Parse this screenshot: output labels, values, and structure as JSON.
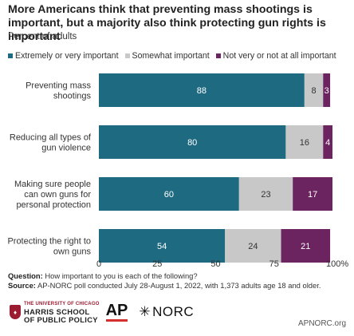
{
  "title": "More Americans think that preventing mass shootings is important, but a majority also think protecting gun rights is important",
  "subtitle": "Percent of adults",
  "footer": {
    "question_label": "Question:",
    "question_text": "How important to you is each of the following?",
    "source_label": "Source:",
    "source_text": "AP-NORC poll conducted July 28-August 1, 2022, with 1,373 adults age 18 and older."
  },
  "logos": {
    "uchicago_small": "THE UNIVERSITY OF CHICAGO",
    "uchicago_line1": "HARRIS SCHOOL",
    "uchicago_line2": "OF PUBLIC POLICY",
    "ap": "AP",
    "norc_star": "✳",
    "norc": "NORC"
  },
  "site": "APNORC.org",
  "colors": {
    "extremely": "#1e6a80",
    "somewhat": "#c8c8c8",
    "not": "#6c2460"
  },
  "chart_data": {
    "type": "bar",
    "orientation": "horizontal",
    "stacked": true,
    "categories": [
      [
        "Preventing mass",
        "shootings"
      ],
      [
        "Reducing all types of",
        "gun violence"
      ],
      [
        "Making sure people",
        "can own guns for",
        "personal protection"
      ],
      [
        "Protecting the right to",
        "own guns"
      ]
    ],
    "series": [
      {
        "name": "Extremely or very important",
        "color_key": "extremely",
        "values": [
          88,
          80,
          60,
          54
        ]
      },
      {
        "name": "Somewhat important",
        "color_key": "somewhat",
        "values": [
          8,
          16,
          23,
          24
        ]
      },
      {
        "name": "Not very or not at all important",
        "color_key": "not",
        "values": [
          3,
          4,
          17,
          21
        ]
      }
    ],
    "xlim": [
      0,
      100
    ],
    "xticks": [
      "0",
      "25",
      "50",
      "75",
      "100%"
    ],
    "legend": "top"
  }
}
